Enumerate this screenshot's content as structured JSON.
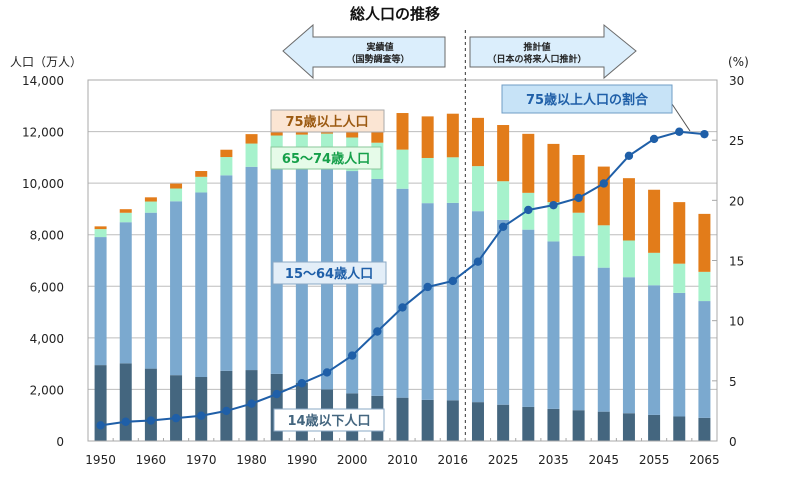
{
  "chart_data": {
    "type": "bar",
    "title": "総人口の推移",
    "ylabel": "人口（万人）",
    "y2label": "(%)",
    "ylim": [
      0,
      14000
    ],
    "y2lim": [
      0,
      30
    ],
    "yticks": [
      "0",
      "2,000",
      "4,000",
      "6,000",
      "8,000",
      "10,000",
      "12,000",
      "14,000"
    ],
    "y2ticks": [
      "0",
      "5",
      "10",
      "15",
      "20",
      "25",
      "30"
    ],
    "grid": true,
    "categories": [
      "1950",
      "1955",
      "1960",
      "1965",
      "1970",
      "1975",
      "1980",
      "1985",
      "1990",
      "1995",
      "2000",
      "2005",
      "2010",
      "2015",
      "2016",
      "2020",
      "2025",
      "2030",
      "2035",
      "2040",
      "2045",
      "2050",
      "2055",
      "2060",
      "2065"
    ],
    "xtick_labels": [
      "1950",
      "1960",
      "1970",
      "1980",
      "1990",
      "2000",
      "2010",
      "2016",
      "2025",
      "2035",
      "2045",
      "2055",
      "2065"
    ],
    "stacked": true,
    "series": [
      {
        "name": "14歳以下人口",
        "color": "#44667f",
        "values": [
          2943,
          3012,
          2807,
          2553,
          2482,
          2722,
          2751,
          2603,
          2249,
          2001,
          1847,
          1752,
          1680,
          1595,
          1578,
          1507,
          1407,
          1321,
          1246,
          1194,
          1138,
          1077,
          1012,
          951,
          898
        ]
      },
      {
        "name": "15〜64歳人口",
        "color": "#7ba9cf",
        "values": [
          4966,
          5473,
          6047,
          6744,
          7157,
          7581,
          7883,
          8251,
          8590,
          8716,
          8622,
          8409,
          8103,
          7629,
          7656,
          7406,
          7170,
          6875,
          6494,
          5978,
          5584,
          5275,
          5028,
          4793,
          4529
        ]
      },
      {
        "name": "65〜74歳人口",
        "color": "#a6f2cc",
        "values": [
          309,
          366,
          433,
          495,
          606,
          709,
          901,
          993,
          1043,
          1204,
          1301,
          1407,
          1517,
          1752,
          1768,
          1747,
          1497,
          1428,
          1522,
          1681,
          1643,
          1424,
          1258,
          1133,
          1133
        ]
      },
      {
        "name": "75歳以上人口",
        "color": "#e27c1a",
        "values": [
          106,
          139,
          163,
          190,
          225,
          284,
          366,
          471,
          597,
          717,
          900,
          1160,
          1419,
          1613,
          1691,
          1872,
          2180,
          2288,
          2260,
          2239,
          2277,
          2417,
          2446,
          2387,
          2248
        ]
      }
    ],
    "line": {
      "name": "75歳以上人口の割合",
      "color": "#1f5fa8",
      "axis": "right",
      "values": [
        1.3,
        1.6,
        1.7,
        1.9,
        2.1,
        2.5,
        3.1,
        3.9,
        4.8,
        5.7,
        7.1,
        9.1,
        11.1,
        12.8,
        13.3,
        14.9,
        17.8,
        19.2,
        19.6,
        20.2,
        21.4,
        23.7,
        25.1,
        25.7,
        25.5
      ]
    },
    "annotations": {
      "actual_arrow_line1": "実績値",
      "actual_arrow_line2": "（国勢調査等）",
      "projection_arrow_line1": "推計値",
      "projection_arrow_line2": "（日本の将来人口推計）",
      "label_75plus": "75歳以上人口",
      "label_65_74": "65〜74歳人口",
      "label_15_64": "15〜64歳人口",
      "label_under14": "14歳以下人口",
      "label_ratio": "75歳以上人口の割合"
    },
    "divider_after": "2016"
  }
}
